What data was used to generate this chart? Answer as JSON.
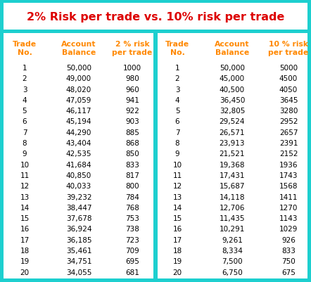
{
  "title": "2% Risk per trade vs. 10% risk per trade",
  "title_color": "#dd0000",
  "bg_color": "#1dcfcf",
  "table_bg": "#ffffff",
  "header_color": "#ff8800",
  "data_color": "#000000",
  "left_headers": [
    "Trade\nNo.",
    "Account\nBalance",
    "2 % risk\nper trade"
  ],
  "right_headers": [
    "Trade\nNo.",
    "Account\nBalance",
    "10 % risk\nper trade"
  ],
  "left_data": [
    [
      1,
      "50,000",
      "1000"
    ],
    [
      2,
      "49,000",
      "980"
    ],
    [
      3,
      "48,020",
      "960"
    ],
    [
      4,
      "47,059",
      "941"
    ],
    [
      5,
      "46,117",
      "922"
    ],
    [
      6,
      "45,194",
      "903"
    ],
    [
      7,
      "44,290",
      "885"
    ],
    [
      8,
      "43,404",
      "868"
    ],
    [
      9,
      "42,535",
      "850"
    ],
    [
      10,
      "41,684",
      "833"
    ],
    [
      11,
      "40,850",
      "817"
    ],
    [
      12,
      "40,033",
      "800"
    ],
    [
      13,
      "39,232",
      "784"
    ],
    [
      14,
      "38,447",
      "768"
    ],
    [
      15,
      "37,678",
      "753"
    ],
    [
      16,
      "36,924",
      "738"
    ],
    [
      17,
      "36,185",
      "723"
    ],
    [
      18,
      "35,461",
      "709"
    ],
    [
      19,
      "34,751",
      "695"
    ],
    [
      20,
      "34,055",
      "681"
    ]
  ],
  "right_data": [
    [
      1,
      "50,000",
      "5000"
    ],
    [
      2,
      "45,000",
      "4500"
    ],
    [
      3,
      "40,500",
      "4050"
    ],
    [
      4,
      "36,450",
      "3645"
    ],
    [
      5,
      "32,805",
      "3280"
    ],
    [
      6,
      "29,524",
      "2952"
    ],
    [
      7,
      "26,571",
      "2657"
    ],
    [
      8,
      "23,913",
      "2391"
    ],
    [
      9,
      "21,521",
      "2152"
    ],
    [
      10,
      "19,368",
      "1936"
    ],
    [
      11,
      "17,431",
      "1743"
    ],
    [
      12,
      "15,687",
      "1568"
    ],
    [
      13,
      "14,118",
      "1411"
    ],
    [
      14,
      "12,706",
      "1270"
    ],
    [
      15,
      "11,435",
      "1143"
    ],
    [
      16,
      "10,291",
      "1029"
    ],
    [
      17,
      "9,261",
      "926"
    ],
    [
      18,
      "8,334",
      "833"
    ],
    [
      19,
      "7,500",
      "750"
    ],
    [
      20,
      "6,750",
      "675"
    ]
  ],
  "fig_width": 4.42,
  "fig_height": 4.02,
  "dpi": 100
}
